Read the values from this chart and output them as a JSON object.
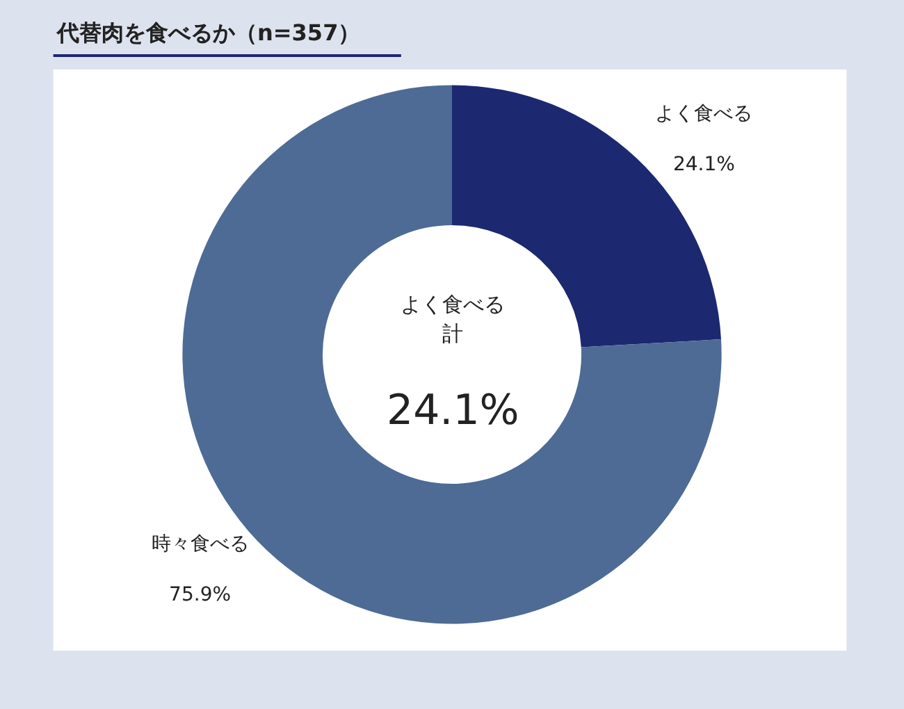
{
  "chart_data": {
    "type": "donut",
    "title": "代替肉を食べるか（n=357）",
    "categories": [
      "よく食べる",
      "時々食べる"
    ],
    "values": [
      24.1,
      75.9
    ],
    "colors": [
      "#1c2870",
      "#4d6b95"
    ],
    "value_labels": [
      "24.1%",
      "75.9%"
    ],
    "annotations": [
      "よく食べる",
      "計",
      "24.1%"
    ],
    "legend": false
  }
}
